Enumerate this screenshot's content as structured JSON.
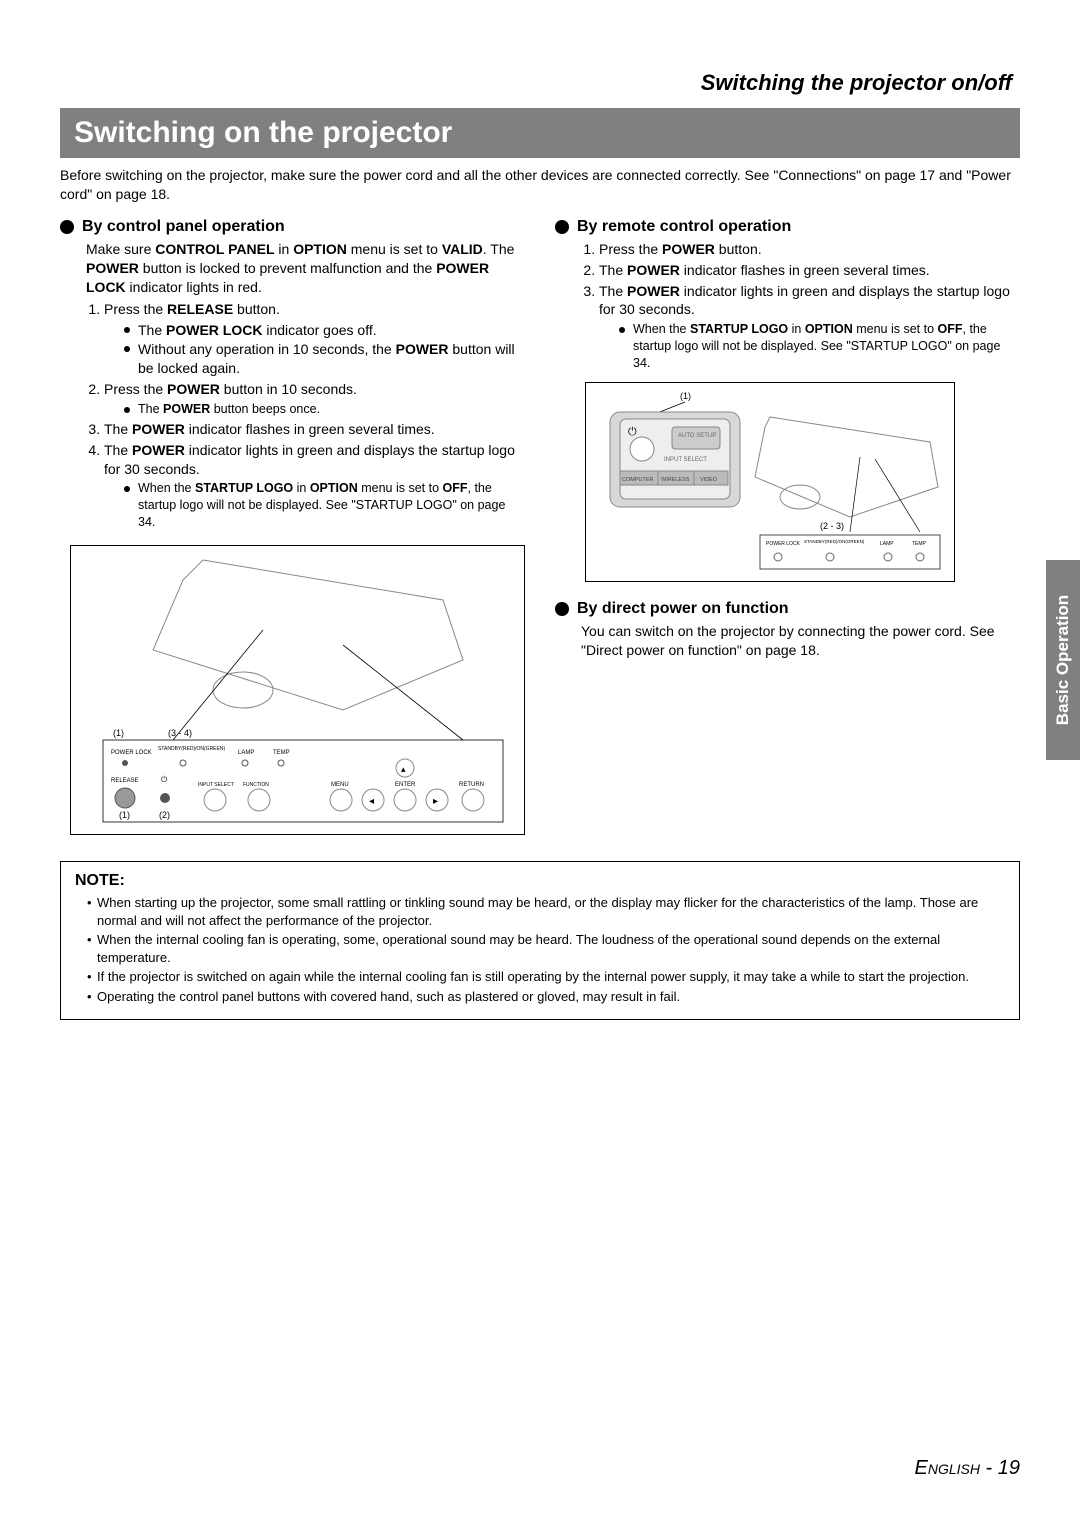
{
  "header": {
    "top_title": "Switching the projector on/off",
    "section_title": "Switching on the projector"
  },
  "intro": "Before switching on the projector, make sure the power cord and all the other devices are connected correctly. See \"Connections\" on page 17 and \"Power cord\" on page 18.",
  "left": {
    "heading": "By control panel operation",
    "lead_html": "Make sure <b>CONTROL PANEL</b> in <b>OPTION</b> menu is set to <b>VALID</b>. The <b>POWER</b> button is locked to prevent malfunction and the <b>POWER LOCK</b> indicator lights in red.",
    "steps": [
      {
        "text_html": "Press the <b>RELEASE</b> button.",
        "sub": [
          "The <b>POWER LOCK</b> indicator goes off.",
          "Without any operation in 10 seconds, the <b>POWER</b> button will be locked again."
        ]
      },
      {
        "text_html": "Press the <b>POWER</b> button in 10 seconds.",
        "sub_small": [
          "The <b>POWER</b> button beeps once."
        ]
      },
      {
        "text_html": "The <b>POWER</b> indicator flashes in green several times."
      },
      {
        "text_html": "The <b>POWER</b> indicator lights in green and displays the startup logo for 30 seconds.",
        "sub_small": [
          "When the <b>STARTUP LOGO</b> in <b>OPTION</b> menu is set to <b>OFF</b>, the startup logo will not be displayed. See \"STARTUP LOGO\" on page 34."
        ]
      }
    ],
    "figure_labels": {
      "top_left": "(1)",
      "top_mid": "(3 - 4)",
      "bot_left": "(1)",
      "bot_mid": "(2)",
      "lbl_power_lock": "POWER LOCK",
      "lbl_standby": "STANDBY(RED)/ON(GREEN)",
      "lbl_lamp": "LAMP",
      "lbl_temp": "TEMP",
      "lbl_release": "RELEASE",
      "lbl_input": "INPUT SELECT",
      "lbl_function": "FUNCTION",
      "lbl_menu": "MENU",
      "lbl_enter": "ENTER",
      "lbl_return": "RETURN"
    }
  },
  "right": {
    "heading1": "By remote control operation",
    "steps1": [
      {
        "text_html": "Press the <b>POWER</b> button."
      },
      {
        "text_html": "The <b>POWER</b> indicator flashes in green several times."
      },
      {
        "text_html": "The <b>POWER</b> indicator lights in green and displays the startup logo for 30 seconds.",
        "sub_small": [
          "When the <b>STARTUP LOGO</b> in <b>OPTION</b> menu is set to <b>OFF</b>, the startup logo will not be displayed. See \"STARTUP LOGO\" on page 34."
        ]
      }
    ],
    "figure_labels": {
      "top": "(1)",
      "bottom": "(2 - 3)",
      "lbl_power_lock": "POWER LOCK",
      "lbl_standby": "STANDBY(RED)/ON(GREEN)",
      "lbl_lamp": "LAMP",
      "lbl_temp": "TEMP",
      "lbl_auto": "AUTO SETUP",
      "lbl_input": "INPUT SELECT",
      "lbl_computer": "COMPUTER",
      "lbl_wireless": "WIRELESS",
      "lbl_video": "VIDEO"
    },
    "heading2": "By direct power on function",
    "body2": "You can switch on the projector by connecting the power cord. See \"Direct power on function\" on page 18."
  },
  "note": {
    "title": "NOTE:",
    "items": [
      "When starting up the projector, some small rattling or tinkling sound may be heard, or the display may flicker for the characteristics of the lamp. Those are normal and will not affect the performance of the projector.",
      "When the internal cooling fan is operating, some, operational sound may be heard. The loudness of the operational sound depends on the external temperature.",
      "If the projector is switched on again while the internal cooling fan is still operating by the internal power supply, it may take a while to start the projection.",
      "Operating the control panel buttons with covered hand, such as plastered or gloved, may result in fail."
    ]
  },
  "side_tab": "Basic Operation",
  "footer": {
    "lang": "English",
    "sep": " - ",
    "page": "19"
  }
}
